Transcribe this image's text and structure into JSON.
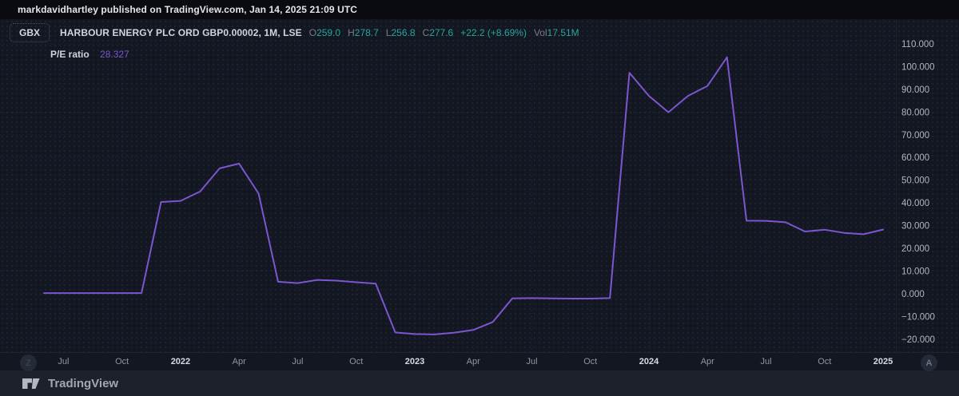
{
  "publish_bar": {
    "text": "markdavidhartley published on TradingView.com, Jan 14, 2025 21:09 UTC"
  },
  "header": {
    "unit_button_label": "GBX",
    "symbol_title": "HARBOUR ENERGY PLC ORD GBP0.00002, 1M, LSE",
    "ohlc": {
      "o_label": "O",
      "o": "259.0",
      "h_label": "H",
      "h": "278.7",
      "l_label": "L",
      "l": "256.8",
      "c_label": "C",
      "c": "277.6",
      "change": "+22.2 (+8.69%)",
      "vol_label": "Vol",
      "vol": "17.51M"
    },
    "indicator": {
      "name": "P/E ratio",
      "value": "28.327"
    }
  },
  "toolbar": {
    "z_label": "Z",
    "a_label": "A"
  },
  "footer": {
    "brand": "TradingView"
  },
  "colors": {
    "accent_line": "#7c55d0",
    "up": "#26a69a",
    "bg": "#131722",
    "footer_bg": "#1d212c",
    "text_primary": "#d1d4dc",
    "text_muted": "#787b86",
    "axis_label": "#b2b5be"
  },
  "chart_data": {
    "type": "line",
    "title": "P/E ratio",
    "symbol": "HARBOUR ENERGY PLC ORD GBP0.00002",
    "timeframe": "1M",
    "exchange": "LSE",
    "last_value": 28.327,
    "grid": true,
    "legend_position": "top-left",
    "ylim": [
      -26,
      121
    ],
    "x": [
      "2021-06",
      "2021-07",
      "2021-08",
      "2021-09",
      "2021-10",
      "2021-11",
      "2021-12",
      "2022-01",
      "2022-02",
      "2022-03",
      "2022-04",
      "2022-05",
      "2022-06",
      "2022-07",
      "2022-08",
      "2022-09",
      "2022-10",
      "2022-11",
      "2022-12",
      "2023-01",
      "2023-02",
      "2023-03",
      "2023-04",
      "2023-05",
      "2023-06",
      "2023-07",
      "2023-08",
      "2023-09",
      "2023-10",
      "2023-11",
      "2023-12",
      "2024-01",
      "2024-02",
      "2024-03",
      "2024-04",
      "2024-05",
      "2024-06",
      "2024-07",
      "2024-08",
      "2024-09",
      "2024-10",
      "2024-11",
      "2024-12",
      "2025-01"
    ],
    "values": [
      0.3,
      0.3,
      0.3,
      0.3,
      0.3,
      0.3,
      40.4,
      40.9,
      45.0,
      55.2,
      57.3,
      44.1,
      5.3,
      4.7,
      6.1,
      5.8,
      5.1,
      4.5,
      -17.0,
      -17.7,
      -17.9,
      -17.1,
      -15.9,
      -12.4,
      -2.0,
      -1.9,
      -2.0,
      -2.1,
      -2.1,
      -1.9,
      97.3,
      87.1,
      79.9,
      87.1,
      91.5,
      104.1,
      32.2,
      32.1,
      31.5,
      27.4,
      28.2,
      26.8,
      26.2,
      28.3
    ],
    "y_ticks": [
      {
        "value": 110,
        "label": "110.000"
      },
      {
        "value": 100,
        "label": "100.000"
      },
      {
        "value": 90,
        "label": "90.000"
      },
      {
        "value": 80,
        "label": "80.000"
      },
      {
        "value": 70,
        "label": "70.000"
      },
      {
        "value": 60,
        "label": "60.000"
      },
      {
        "value": 50,
        "label": "50.000"
      },
      {
        "value": 40,
        "label": "40.000"
      },
      {
        "value": 30,
        "label": "30.000"
      },
      {
        "value": 20,
        "label": "20.000"
      },
      {
        "value": 10,
        "label": "10.000"
      },
      {
        "value": 0,
        "label": "0.000"
      },
      {
        "value": -10,
        "label": "−10.000"
      },
      {
        "value": -20,
        "label": "−20.000"
      }
    ],
    "x_ticks": [
      {
        "label": "Jul",
        "index": 1,
        "bold": false
      },
      {
        "label": "Oct",
        "index": 4,
        "bold": false
      },
      {
        "label": "2022",
        "index": 7,
        "bold": true
      },
      {
        "label": "Apr",
        "index": 10,
        "bold": false
      },
      {
        "label": "Jul",
        "index": 13,
        "bold": false
      },
      {
        "label": "Oct",
        "index": 16,
        "bold": false
      },
      {
        "label": "2023",
        "index": 19,
        "bold": true
      },
      {
        "label": "Apr",
        "index": 22,
        "bold": false
      },
      {
        "label": "Jul",
        "index": 25,
        "bold": false
      },
      {
        "label": "Oct",
        "index": 28,
        "bold": false
      },
      {
        "label": "2024",
        "index": 31,
        "bold": true
      },
      {
        "label": "Apr",
        "index": 34,
        "bold": false
      },
      {
        "label": "Jul",
        "index": 37,
        "bold": false
      },
      {
        "label": "Oct",
        "index": 40,
        "bold": false
      },
      {
        "label": "2025",
        "index": 43,
        "bold": true
      }
    ]
  }
}
